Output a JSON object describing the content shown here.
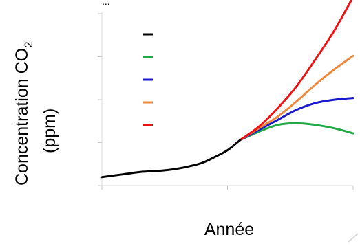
{
  "chart_data": {
    "type": "line",
    "title": "",
    "xlabel": "Année",
    "ylabel_line1": "Concentration CO",
    "ylabel_subscript": "2",
    "ylabel_line2": "(ppm)",
    "top_label_partial": "...",
    "x_range": [
      1900,
      2100
    ],
    "y_range": [
      0,
      100
    ],
    "x_ticks": [
      1900,
      2000,
      2100
    ],
    "y_tick_count": 4,
    "x_tick_labels_visible": false,
    "y_tick_labels_visible": false,
    "grid": false,
    "legend": {
      "placement": "top-left",
      "labels_visible": false
    },
    "series": [
      {
        "color": "#000000",
        "x": [
          1900,
          1910,
          1920,
          1930,
          1940,
          1950,
          1960,
          1970,
          1980,
          1990,
          2000,
          2010
        ],
        "y": [
          5,
          6,
          7,
          8,
          8.5,
          9,
          10,
          11.5,
          13.5,
          17,
          21,
          27
        ]
      },
      {
        "color": "#22aa44",
        "x": [
          2010,
          2025,
          2040,
          2055,
          2070,
          2085,
          2100
        ],
        "y": [
          27,
          32,
          36,
          37,
          36,
          34,
          31
        ]
      },
      {
        "color": "#1a1acc",
        "x": [
          2010,
          2025,
          2040,
          2055,
          2070,
          2085,
          2100
        ],
        "y": [
          27,
          33,
          39,
          45,
          49,
          51,
          52
        ]
      },
      {
        "color": "#f0883c",
        "x": [
          2010,
          2025,
          2040,
          2055,
          2070,
          2085,
          2100
        ],
        "y": [
          27,
          34,
          41,
          50,
          60,
          69,
          77
        ]
      },
      {
        "color": "#ee1111",
        "x": [
          2010,
          2025,
          2040,
          2055,
          2070,
          2085,
          2100
        ],
        "y": [
          27,
          35,
          46,
          59,
          75,
          92,
          112
        ]
      }
    ]
  }
}
